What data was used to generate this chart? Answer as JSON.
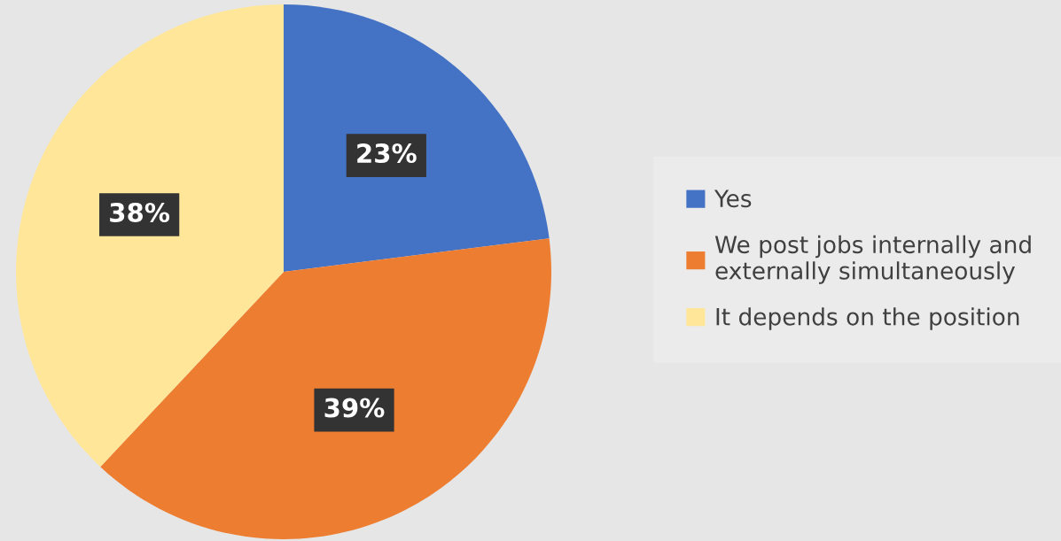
{
  "chart_data": {
    "type": "pie",
    "categories": [
      "Yes",
      "We post jobs internally and externally simultaneously",
      "It depends on the position"
    ],
    "values": [
      23,
      39,
      38
    ],
    "colors": [
      "#4472c4",
      "#ed7d31",
      "#ffe699"
    ],
    "value_labels": [
      "23%",
      "39%",
      "38%"
    ],
    "legend": "right"
  }
}
